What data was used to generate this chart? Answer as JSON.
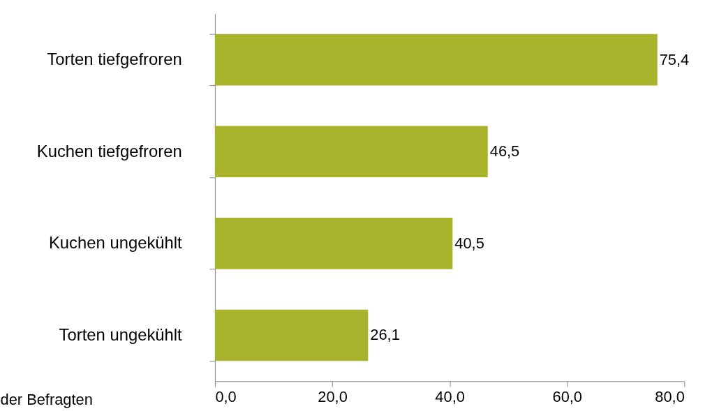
{
  "chart_data": {
    "type": "bar",
    "orientation": "horizontal",
    "xlabel": "der Befragten",
    "categories": [
      "Torten tiefgefroren",
      "Kuchen tiefgefroren",
      "Kuchen ungekühlt",
      "Torten ungekühlt"
    ],
    "series": [
      {
        "color": "#a8b42c",
        "values": [
          75.4,
          46.5,
          40.5,
          26.1
        ],
        "value_labels": [
          "75,4",
          "46,5",
          "40,5",
          "26,1"
        ]
      }
    ],
    "xlim": [
      0,
      80
    ],
    "xticks": [
      {
        "value": 0,
        "label": "0,0"
      },
      {
        "value": 20,
        "label": "20,0"
      },
      {
        "value": 40,
        "label": "40,0"
      },
      {
        "value": 60,
        "label": "60,0"
      },
      {
        "value": 80,
        "label": "80,0"
      }
    ],
    "grid": false
  }
}
